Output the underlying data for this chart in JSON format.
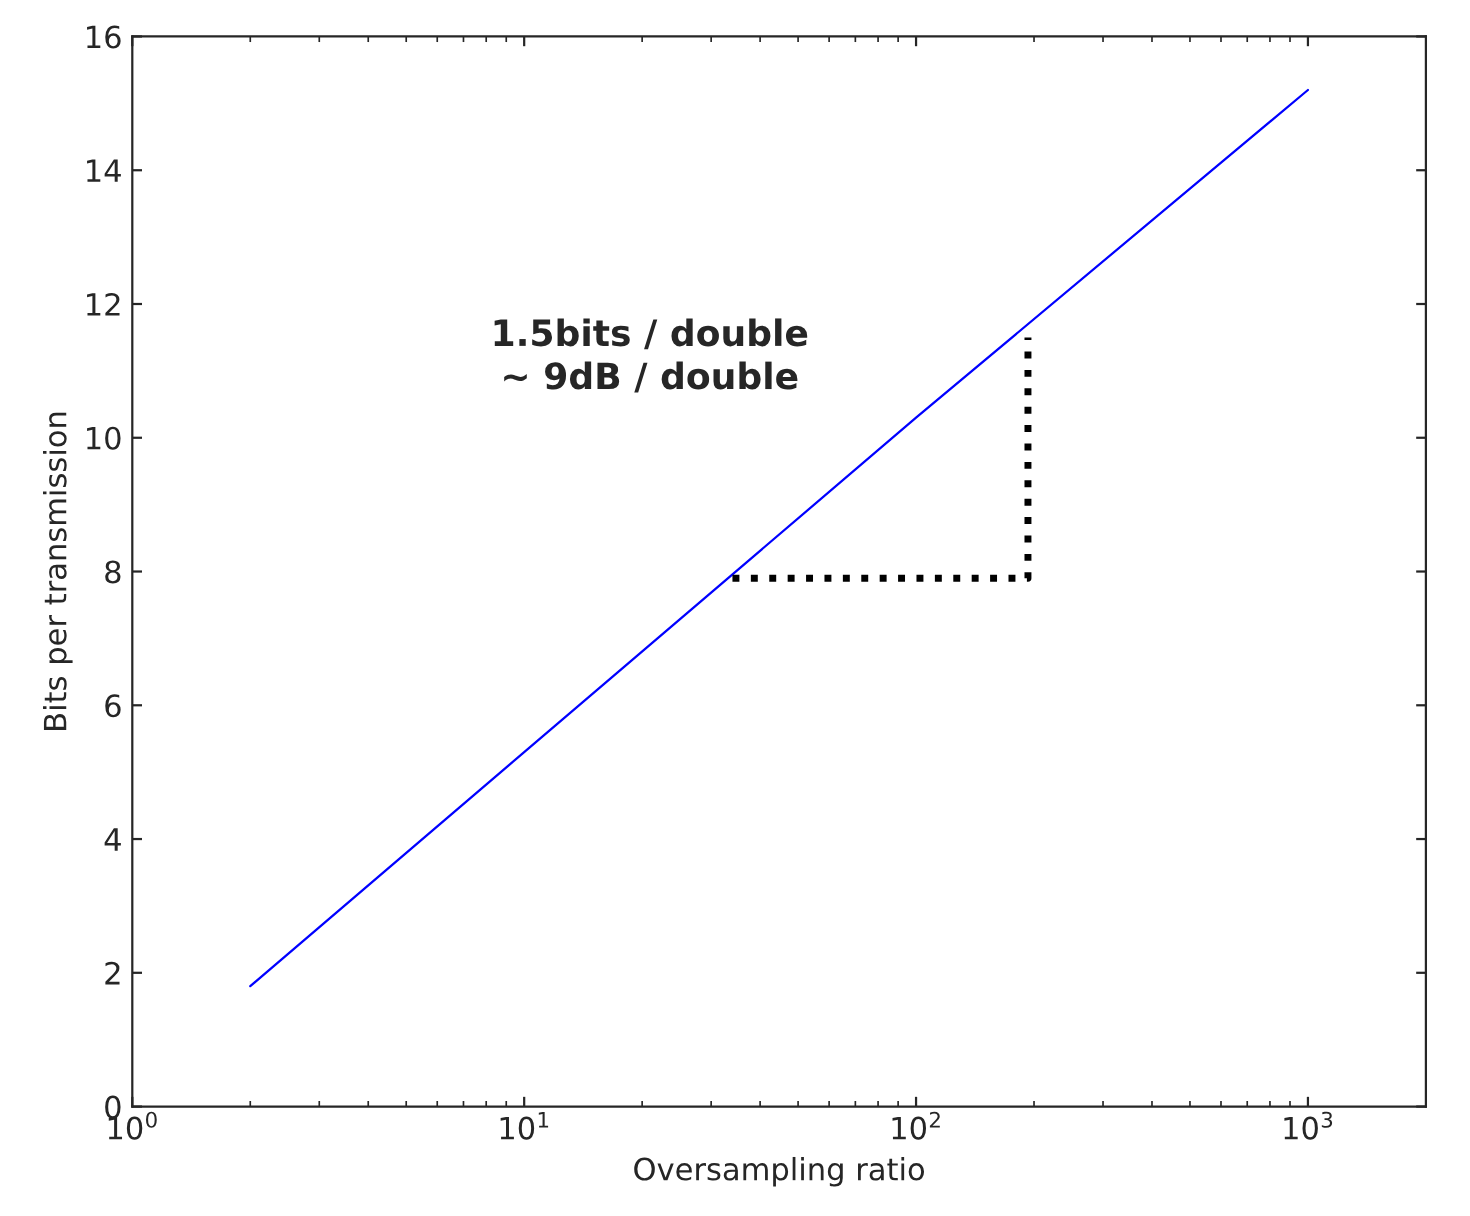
{
  "chart_data": {
    "type": "line",
    "xlabel": "Oversampling ratio",
    "ylabel": "Bits per transmission",
    "annotations": [
      "1.5bits / double\n~ 9dB / double"
    ],
    "log": "x",
    "xlim": [
      1,
      2000
    ],
    "xticks": [
      {
        "value": 1,
        "label": "10$^{0}$"
      },
      {
        "value": 10,
        "label": "10$^{1}$"
      },
      {
        "value": 100,
        "label": "10$^{2}$"
      },
      {
        "value": 1000,
        "label": "10$^{3}$"
      }
    ],
    "ylim": [
      0,
      16
    ],
    "yticks": [
      0,
      2,
      4,
      6,
      8,
      10,
      12,
      14,
      16
    ],
    "grid": false,
    "series": [
      {
        "color": "#0000ff",
        "x": [
          2,
          10,
          100,
          1000
        ],
        "values": [
          1.8,
          5.3,
          10.3,
          15.2
        ],
        "line_style": "solid",
        "marker": "none"
      },
      {
        "color": "#000000",
        "x": [
          34,
          193,
          193
        ],
        "values": [
          7.9,
          7.9,
          11.5
        ],
        "line_style": "dotted",
        "marker": "none"
      }
    ]
  }
}
